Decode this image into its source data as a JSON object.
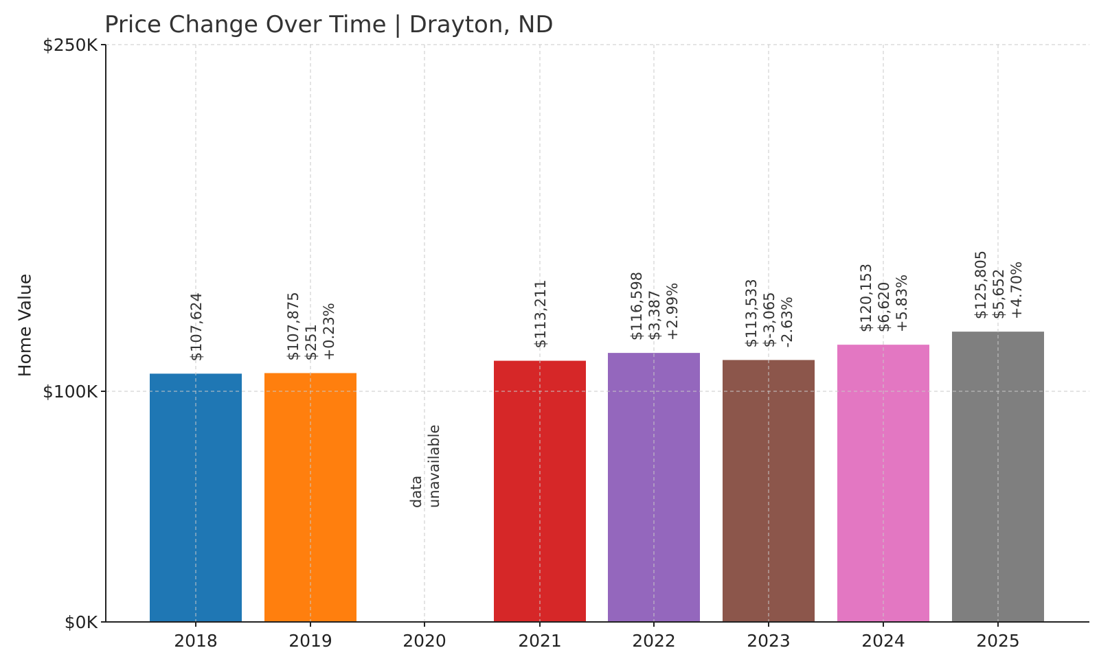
{
  "chart_data": {
    "type": "bar",
    "title": "Price Change Over Time | Drayton, ND",
    "ylabel": "Home Value",
    "xlabel": "",
    "ylim": [
      0,
      250000
    ],
    "yticks": [
      {
        "value": 0,
        "label": "$0K"
      },
      {
        "value": 100000,
        "label": "$100K"
      },
      {
        "value": 250000,
        "label": "$250K"
      }
    ],
    "grid": true,
    "categories": [
      "2018",
      "2019",
      "2020",
      "2021",
      "2022",
      "2023",
      "2024",
      "2025"
    ],
    "values": [
      107624,
      107875,
      null,
      113211,
      116598,
      113533,
      120153,
      125805
    ],
    "colors": [
      "#1f77b4",
      "#ff7f0e",
      null,
      "#d62728",
      "#9467bd",
      "#8c564b",
      "#e377c2",
      "#7f7f7f"
    ],
    "labels": [
      [
        "$107,624"
      ],
      [
        "$107,875",
        "$251",
        "+0.23%"
      ],
      [
        "data",
        "unavailable"
      ],
      [
        "$113,211"
      ],
      [
        "$116,598",
        "$3,387",
        "+2.99%"
      ],
      [
        "$113,533",
        "$-3,065",
        "-2.63%"
      ],
      [
        "$120,153",
        "$6,620",
        "+5.83%"
      ],
      [
        "$125,805",
        "$5,652",
        "+4.70%"
      ]
    ]
  }
}
